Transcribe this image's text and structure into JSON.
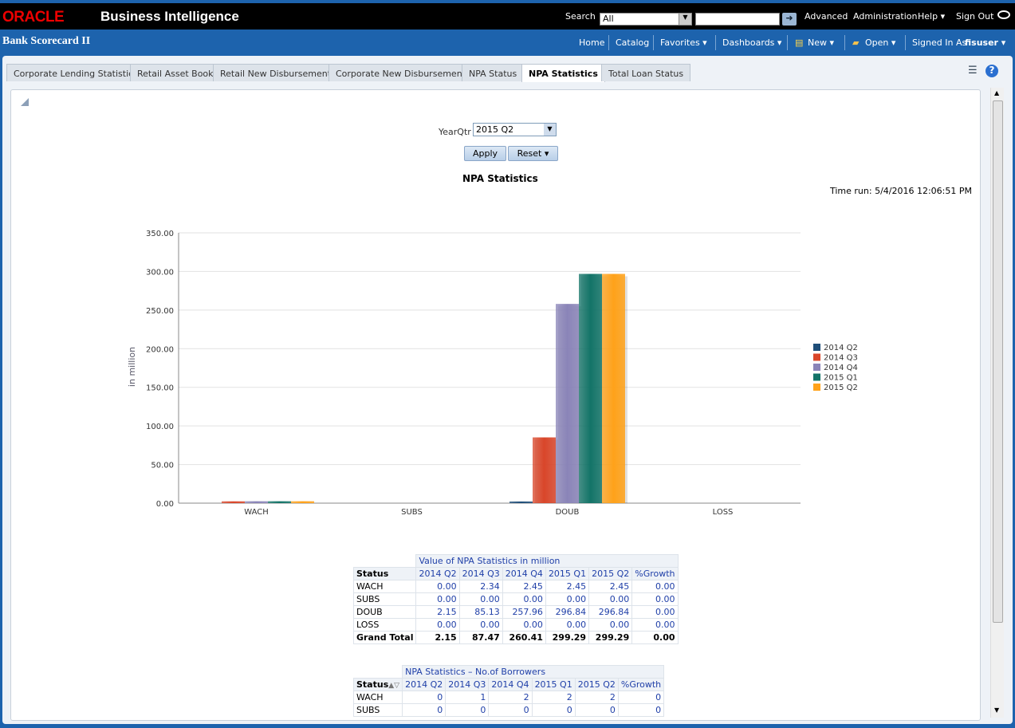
{
  "header": {
    "logo": "ORACLE",
    "product": "Business Intelligence",
    "search_label": "Search",
    "search_scope": "All",
    "advanced": "Advanced",
    "administration": "Administration",
    "help": "Help ▾",
    "sign_out": "Sign Out"
  },
  "nav": {
    "dashboard_title": "Bank Scorecard II",
    "home": "Home",
    "catalog": "Catalog",
    "favorites": "Favorites ▾",
    "dashboards": "Dashboards ▾",
    "new": "New ▾",
    "open": "Open ▾",
    "signed_in_as": "Signed In As",
    "user": "fisuser ▾"
  },
  "tabs": [
    "Corporate Lending Statistics",
    "Retail Asset Book",
    "Retail New Disbursements",
    "Corporate New Disbursements",
    "NPA Status",
    "NPA Statistics",
    "Total Loan Status"
  ],
  "prompt": {
    "label": "YearQtr",
    "value": "2015 Q2",
    "apply": "Apply",
    "reset": "Reset ▾"
  },
  "time_run": "Time run: 5/4/2016 12:06:51 PM",
  "chart_data": {
    "type": "bar",
    "title": "NPA Statistics",
    "xlabel": "",
    "ylabel": "in million",
    "ylim": [
      0,
      350
    ],
    "yticks": [
      "0.00",
      "50.00",
      "100.00",
      "150.00",
      "200.00",
      "250.00",
      "300.00",
      "350.00"
    ],
    "grid": true,
    "legend": "right",
    "categories": [
      "WACH",
      "SUBS",
      "DOUB",
      "LOSS"
    ],
    "series": [
      {
        "name": "2014 Q2",
        "color": "#1f4e79",
        "values": [
          0,
          0,
          2.15,
          0
        ]
      },
      {
        "name": "2014 Q3",
        "color": "#d9462a",
        "values": [
          2.34,
          0,
          85.13,
          0
        ]
      },
      {
        "name": "2014 Q4",
        "color": "#8a84b8",
        "values": [
          2.45,
          0,
          257.96,
          0
        ]
      },
      {
        "name": "2015 Q1",
        "color": "#137468",
        "values": [
          2.45,
          0,
          296.84,
          0
        ]
      },
      {
        "name": "2015 Q2",
        "color": "#ffa21a",
        "values": [
          2.45,
          0,
          296.84,
          0
        ]
      }
    ]
  },
  "table1": {
    "title": "Value of NPA Statistics in million",
    "status_header": "Status",
    "columns": [
      "2014 Q2",
      "2014 Q3",
      "2014 Q4",
      "2015 Q1",
      "2015 Q2",
      "%Growth"
    ],
    "rows": [
      {
        "label": "WACH",
        "values": [
          "0.00",
          "2.34",
          "2.45",
          "2.45",
          "2.45",
          "0.00"
        ]
      },
      {
        "label": "SUBS",
        "values": [
          "0.00",
          "0.00",
          "0.00",
          "0.00",
          "0.00",
          "0.00"
        ]
      },
      {
        "label": "DOUB",
        "values": [
          "2.15",
          "85.13",
          "257.96",
          "296.84",
          "296.84",
          "0.00"
        ]
      },
      {
        "label": "LOSS",
        "values": [
          "0.00",
          "0.00",
          "0.00",
          "0.00",
          "0.00",
          "0.00"
        ]
      },
      {
        "label": "Grand Total",
        "values": [
          "2.15",
          "87.47",
          "260.41",
          "299.29",
          "299.29",
          "0.00"
        ]
      }
    ]
  },
  "table2": {
    "title": "NPA Statistics – No.of Borrowers",
    "status_header": "Status",
    "columns": [
      "2014 Q2",
      "2014 Q3",
      "2014 Q4",
      "2015 Q1",
      "2015 Q2",
      "%Growth"
    ],
    "rows": [
      {
        "label": "WACH",
        "values": [
          "0",
          "1",
          "2",
          "2",
          "2",
          "0"
        ]
      },
      {
        "label": "SUBS",
        "values": [
          "0",
          "0",
          "0",
          "0",
          "0",
          "0"
        ]
      }
    ]
  }
}
